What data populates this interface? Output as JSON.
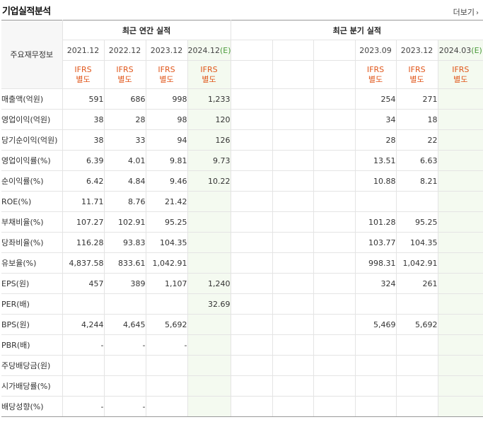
{
  "header": {
    "title": "기업실적분석",
    "more_label": "더보기"
  },
  "table": {
    "corner_label": "주요재무정보",
    "group_annual": "최근 연간 실적",
    "group_quarter": "최근 분기 실적",
    "annual_periods": [
      "2021.12",
      "2022.12",
      "2023.12",
      "2024.12(E)"
    ],
    "quarter_periods": [
      "",
      "",
      "",
      "2023.09",
      "2023.12",
      "2024.03(E)"
    ],
    "ifrs_line1": "IFRS",
    "ifrs_line2": "별도",
    "rows": [
      {
        "label": "매출액(억원)",
        "values": [
          "591",
          "686",
          "998",
          "1,233",
          "",
          "",
          "",
          "254",
          "271",
          ""
        ]
      },
      {
        "label": "영업이익(억원)",
        "values": [
          "38",
          "28",
          "98",
          "120",
          "",
          "",
          "",
          "34",
          "18",
          ""
        ]
      },
      {
        "label": "당기순이익(억원)",
        "values": [
          "38",
          "33",
          "94",
          "126",
          "",
          "",
          "",
          "28",
          "22",
          ""
        ]
      },
      {
        "label": "영업이익률(%)",
        "values": [
          "6.39",
          "4.01",
          "9.81",
          "9.73",
          "",
          "",
          "",
          "13.51",
          "6.63",
          ""
        ]
      },
      {
        "label": "순이익률(%)",
        "values": [
          "6.42",
          "4.84",
          "9.46",
          "10.22",
          "",
          "",
          "",
          "10.88",
          "8.21",
          ""
        ]
      },
      {
        "label": "ROE(%)",
        "values": [
          "11.71",
          "8.76",
          "21.42",
          "",
          "",
          "",
          "",
          "",
          "",
          ""
        ]
      },
      {
        "label": "부채비율(%)",
        "values": [
          "107.27",
          "102.91",
          "95.25",
          "",
          "",
          "",
          "",
          "101.28",
          "95.25",
          ""
        ]
      },
      {
        "label": "당좌비율(%)",
        "values": [
          "116.28",
          "93.83",
          "104.35",
          "",
          "",
          "",
          "",
          "103.77",
          "104.35",
          ""
        ]
      },
      {
        "label": "유보율(%)",
        "values": [
          "4,837.58",
          "833.61",
          "1,042.91",
          "",
          "",
          "",
          "",
          "998.31",
          "1,042.91",
          ""
        ]
      },
      {
        "label": "EPS(원)",
        "values": [
          "457",
          "389",
          "1,107",
          "1,240",
          "",
          "",
          "",
          "324",
          "261",
          ""
        ]
      },
      {
        "label": "PER(배)",
        "values": [
          "",
          "",
          "",
          "32.69",
          "",
          "",
          "",
          "",
          "",
          ""
        ]
      },
      {
        "label": "BPS(원)",
        "values": [
          "4,244",
          "4,645",
          "5,692",
          "",
          "",
          "",
          "",
          "5,469",
          "5,692",
          ""
        ]
      },
      {
        "label": "PBR(배)",
        "values": [
          "-",
          "-",
          "-",
          "",
          "",
          "",
          "",
          "",
          "",
          ""
        ]
      },
      {
        "label": "주당배당금(원)",
        "values": [
          "",
          "",
          "",
          "",
          "",
          "",
          "",
          "",
          "",
          ""
        ]
      },
      {
        "label": "시가배당률(%)",
        "values": [
          "",
          "",
          "",
          "",
          "",
          "",
          "",
          "",
          "",
          ""
        ]
      },
      {
        "label": "배당성향(%)",
        "values": [
          "-",
          "-",
          "",
          "",
          "",
          "",
          "",
          "",
          "",
          ""
        ]
      }
    ],
    "separator_before_rows": [
      3,
      6,
      9,
      13
    ]
  },
  "colors": {
    "ifrs": "#e0571b",
    "estimate_bg": "#f4faf0",
    "estimate_text": "#4a9a3a"
  }
}
